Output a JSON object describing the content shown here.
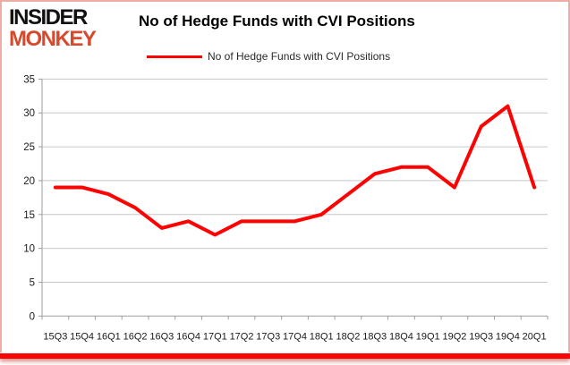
{
  "brand": {
    "line1": "INSIDER",
    "line2": "MONKEY"
  },
  "title": "No of Hedge Funds with CVI Positions",
  "legend": {
    "label": "No of Hedge Funds with CVI Positions"
  },
  "colors": {
    "line": "#fe0202",
    "brand_black": "#111111",
    "brand_red": "#d6492c",
    "grid": "#c6c6c6",
    "axis": "#9d9d9d",
    "tick_label": "#1a1a1a",
    "frame_pink": "#efaca4",
    "bottom_bar": "#fb0404"
  },
  "chart_data": {
    "type": "line",
    "title": "No of Hedge Funds with CVI Positions",
    "categories": [
      "15Q3",
      "15Q4",
      "16Q1",
      "16Q2",
      "16Q3",
      "16Q4",
      "17Q1",
      "17Q2",
      "17Q3",
      "17Q4",
      "18Q1",
      "18Q2",
      "18Q3",
      "18Q4",
      "19Q1",
      "19Q2",
      "19Q3",
      "19Q4",
      "20Q1"
    ],
    "series": [
      {
        "name": "No of Hedge Funds with CVI Positions",
        "values": [
          19,
          19,
          18,
          16,
          13,
          14,
          12,
          14,
          14,
          14,
          15,
          18,
          21,
          22,
          22,
          19,
          28,
          31,
          19
        ]
      }
    ],
    "xlabel": "",
    "ylabel": "",
    "ylim": [
      0,
      35
    ],
    "ytick_step": 5,
    "yticks": [
      0,
      5,
      10,
      15,
      20,
      25,
      30,
      35
    ],
    "grid": true,
    "legend_position": "top"
  }
}
